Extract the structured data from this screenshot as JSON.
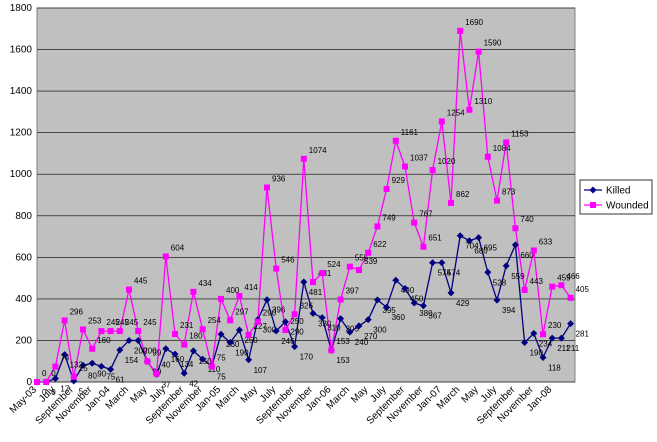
{
  "chart_data": {
    "type": "line",
    "categories": [
      "May-03",
      null,
      "July",
      null,
      "September",
      null,
      "November",
      null,
      "Jan-04",
      null,
      "March",
      null,
      "May",
      null,
      "July",
      null,
      "September",
      null,
      "November",
      null,
      "Jan-05",
      null,
      "March",
      null,
      "May",
      null,
      "July",
      null,
      "September",
      null,
      "November",
      null,
      "Jan-06",
      null,
      "March",
      null,
      "May",
      null,
      "July",
      null,
      "September",
      null,
      "November",
      null,
      "Jan-07",
      null,
      "March",
      null,
      "May",
      null,
      "July",
      null,
      "September",
      null,
      "November",
      null,
      "Jan-08",
      null,
      null
    ],
    "series": [
      {
        "name": "Killed",
        "color": "#000080",
        "marker": "diamond",
        "values": [
          0,
          0,
          17,
          132,
          5,
          80,
          90,
          75,
          61,
          154,
          200,
          200,
          99,
          37,
          160,
          134,
          42,
          150,
          110,
          75,
          230,
          190,
          250,
          107,
          300,
          396,
          246,
          290,
          170,
          481,
          330,
          310,
          153,
          305,
          240,
          270,
          300,
          395,
          360,
          490,
          450,
          380,
          367,
          574,
          574,
          429,
          704,
          680,
          695,
          528,
          394,
          559,
          660,
          190,
          234,
          118,
          211,
          211,
          281
        ]
      },
      {
        "name": "Wounded",
        "color": "#ff00ff",
        "marker": "square",
        "values": [
          0,
          0,
          74,
          296,
          25,
          253,
          160,
          245,
          245,
          245,
          445,
          245,
          99,
          40,
          604,
          231,
          180,
          434,
          254,
          75,
          400,
          297,
          414,
          227,
          290,
          936,
          546,
          250,
          326,
          1074,
          481,
          524,
          153,
          397,
          555,
          539,
          622,
          749,
          929,
          1161,
          1037,
          767,
          651,
          1020,
          1254,
          862,
          1690,
          1310,
          1590,
          1084,
          873,
          1153,
          740,
          443,
          633,
          230,
          459,
          466,
          405
        ]
      }
    ],
    "ylim": [
      0,
      1800
    ],
    "yticks": [
      0,
      200,
      400,
      600,
      800,
      1000,
      1200,
      1400,
      1600,
      1800
    ],
    "grid": true,
    "legend": "right"
  }
}
